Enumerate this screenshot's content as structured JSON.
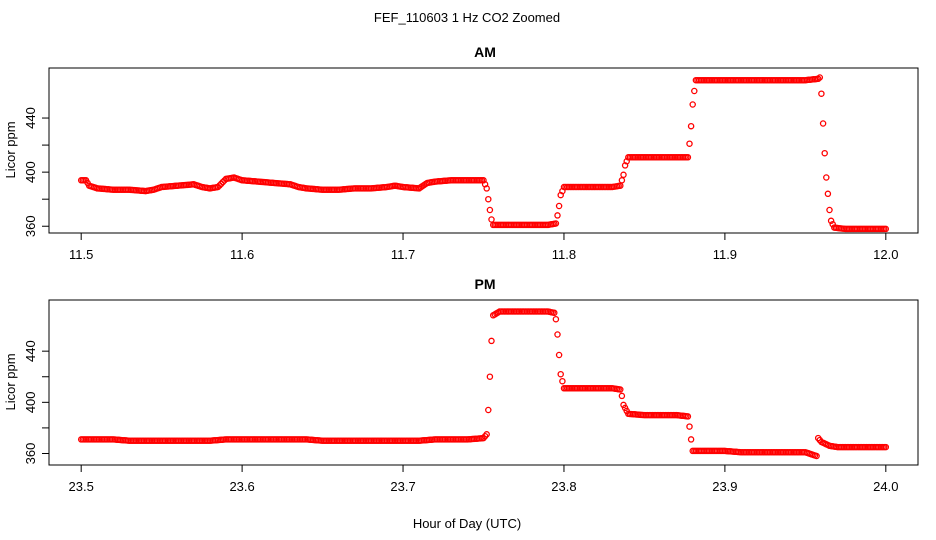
{
  "figure": {
    "title": "FEF_110603  1 Hz CO2 Zoomed",
    "xlabel": "Hour of Day (UTC)",
    "marker_color": "#ff0000"
  },
  "chart_data": [
    {
      "type": "scatter",
      "title": "AM",
      "ylabel": "Licor ppm",
      "xlim": [
        11.48,
        12.02
      ],
      "ylim": [
        355,
        477
      ],
      "xticks": [
        11.5,
        11.6,
        11.7,
        11.8,
        11.9,
        12.0
      ],
      "xtick_labels": [
        "11.5",
        "11.6",
        "11.7",
        "11.8",
        "11.9",
        "12.0"
      ],
      "yticks": [
        360,
        400,
        440
      ],
      "ytick_labels": [
        "360",
        "400",
        "440"
      ],
      "series": [
        {
          "points": [
            [
              11.5,
              394
            ],
            [
              11.503,
              394
            ],
            [
              11.505,
              390
            ],
            [
              11.51,
              388
            ],
            [
              11.52,
              387
            ],
            [
              11.53,
              387
            ],
            [
              11.54,
              386
            ],
            [
              11.545,
              387
            ],
            [
              11.55,
              389
            ],
            [
              11.56,
              390
            ],
            [
              11.57,
              391
            ],
            [
              11.575,
              389
            ],
            [
              11.58,
              388
            ],
            [
              11.585,
              389
            ],
            [
              11.59,
              395
            ],
            [
              11.595,
              396
            ],
            [
              11.6,
              394
            ],
            [
              11.61,
              393
            ],
            [
              11.62,
              392
            ],
            [
              11.63,
              391
            ],
            [
              11.635,
              389
            ],
            [
              11.64,
              388
            ],
            [
              11.65,
              387
            ],
            [
              11.66,
              387
            ],
            [
              11.67,
              388
            ],
            [
              11.68,
              388
            ],
            [
              11.69,
              389
            ],
            [
              11.695,
              390
            ],
            [
              11.7,
              389
            ],
            [
              11.71,
              388
            ],
            [
              11.715,
              392
            ],
            [
              11.72,
              393
            ],
            [
              11.73,
              394
            ],
            [
              11.74,
              394
            ],
            [
              11.75,
              394
            ],
            [
              11.752,
              388
            ],
            [
              11.753,
              380
            ],
            [
              11.754,
              372
            ],
            [
              11.755,
              365
            ],
            [
              11.756,
              361
            ],
            [
              11.76,
              361
            ],
            [
              11.77,
              361
            ],
            [
              11.78,
              361
            ],
            [
              11.79,
              361
            ],
            [
              11.795,
              362
            ],
            [
              11.796,
              368
            ],
            [
              11.797,
              375
            ],
            [
              11.798,
              383
            ],
            [
              11.8,
              389
            ],
            [
              11.81,
              389
            ],
            [
              11.82,
              389
            ],
            [
              11.83,
              389
            ],
            [
              11.835,
              390
            ],
            [
              11.837,
              398
            ],
            [
              11.838,
              405
            ],
            [
              11.84,
              411
            ],
            [
              11.85,
              411
            ],
            [
              11.86,
              411
            ],
            [
              11.87,
              411
            ],
            [
              11.877,
              411
            ],
            [
              11.878,
              421
            ],
            [
              11.879,
              434
            ],
            [
              11.88,
              450
            ],
            [
              11.881,
              460
            ],
            [
              11.882,
              468
            ],
            [
              11.89,
              468
            ],
            [
              11.9,
              468
            ],
            [
              11.91,
              468
            ],
            [
              11.92,
              468
            ],
            [
              11.93,
              468
            ],
            [
              11.94,
              468
            ],
            [
              11.95,
              468
            ],
            [
              11.958,
              469
            ],
            [
              11.959,
              470
            ],
            [
              11.96,
              458
            ],
            [
              11.961,
              436
            ],
            [
              11.962,
              414
            ],
            [
              11.963,
              396
            ],
            [
              11.964,
              384
            ],
            [
              11.965,
              372
            ],
            [
              11.966,
              364
            ],
            [
              11.968,
              359
            ],
            [
              11.975,
              358
            ],
            [
              11.98,
              358
            ],
            [
              11.99,
              358
            ],
            [
              12.0,
              358
            ]
          ]
        }
      ]
    },
    {
      "type": "scatter",
      "title": "PM",
      "ylabel": "Licor ppm",
      "xlim": [
        23.48,
        24.02
      ],
      "ylim": [
        351,
        480
      ],
      "xticks": [
        23.5,
        23.6,
        23.7,
        23.8,
        23.9,
        24.0
      ],
      "xtick_labels": [
        "23.5",
        "23.6",
        "23.7",
        "23.8",
        "23.9",
        "24.0"
      ],
      "yticks": [
        360,
        400,
        440
      ],
      "ytick_labels": [
        "360",
        "400",
        "440"
      ],
      "series": [
        {
          "points": [
            [
              23.5,
              371
            ],
            [
              23.51,
              371
            ],
            [
              23.52,
              371
            ],
            [
              23.53,
              370
            ],
            [
              23.54,
              370
            ],
            [
              23.55,
              370
            ],
            [
              23.56,
              370
            ],
            [
              23.57,
              370
            ],
            [
              23.58,
              370
            ],
            [
              23.59,
              371
            ],
            [
              23.6,
              371
            ],
            [
              23.61,
              371
            ],
            [
              23.62,
              371
            ],
            [
              23.63,
              371
            ],
            [
              23.64,
              371
            ],
            [
              23.65,
              370
            ],
            [
              23.66,
              370
            ],
            [
              23.67,
              370
            ],
            [
              23.68,
              370
            ],
            [
              23.69,
              370
            ],
            [
              23.7,
              370
            ],
            [
              23.71,
              370
            ],
            [
              23.72,
              371
            ],
            [
              23.73,
              371
            ],
            [
              23.74,
              371
            ],
            [
              23.75,
              372
            ],
            [
              23.752,
              375
            ],
            [
              23.753,
              394
            ],
            [
              23.754,
              420
            ],
            [
              23.755,
              448
            ],
            [
              23.756,
              468
            ],
            [
              23.76,
              471
            ],
            [
              23.77,
              471
            ],
            [
              23.78,
              471
            ],
            [
              23.79,
              471
            ],
            [
              23.794,
              470
            ],
            [
              23.795,
              465
            ],
            [
              23.796,
              453
            ],
            [
              23.797,
              437
            ],
            [
              23.798,
              422
            ],
            [
              23.8,
              411
            ],
            [
              23.81,
              411
            ],
            [
              23.82,
              411
            ],
            [
              23.83,
              411
            ],
            [
              23.835,
              410
            ],
            [
              23.836,
              405
            ],
            [
              23.837,
              398
            ],
            [
              23.84,
              391
            ],
            [
              23.85,
              390
            ],
            [
              23.86,
              390
            ],
            [
              23.87,
              390
            ],
            [
              23.877,
              389
            ],
            [
              23.878,
              381
            ],
            [
              23.879,
              371
            ],
            [
              23.88,
              362
            ],
            [
              23.89,
              362
            ],
            [
              23.9,
              362
            ],
            [
              23.91,
              361
            ],
            [
              23.92,
              361
            ],
            [
              23.93,
              361
            ],
            [
              23.94,
              361
            ],
            [
              23.95,
              361
            ],
            [
              23.957,
              358
            ],
            [
              23.958,
              372
            ],
            [
              23.96,
              369
            ],
            [
              23.965,
              366
            ],
            [
              23.97,
              365
            ],
            [
              23.98,
              365
            ],
            [
              23.99,
              365
            ],
            [
              24.0,
              365
            ]
          ]
        }
      ]
    }
  ]
}
